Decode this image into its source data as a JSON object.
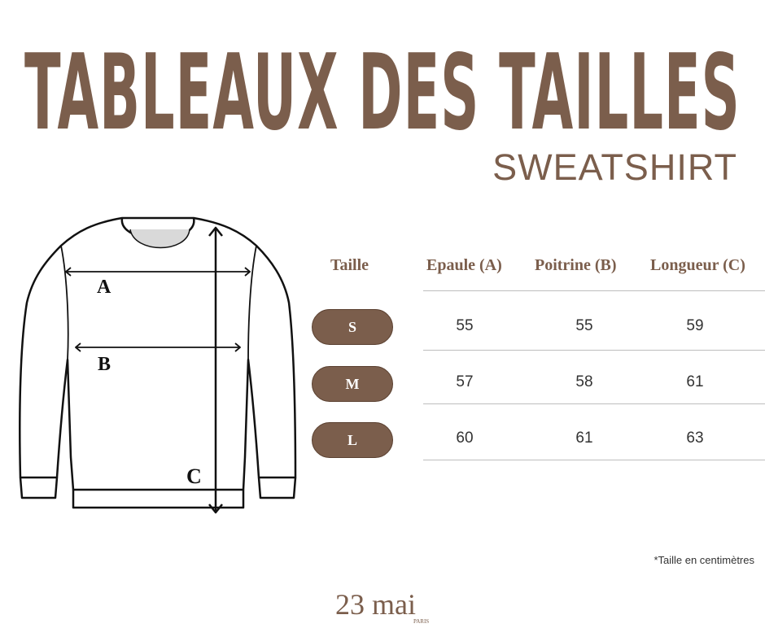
{
  "header": {
    "title": "TABLEAUX DES TAILLES",
    "subtitle": "SWEATSHIRT"
  },
  "diagram": {
    "labels": {
      "a": "A",
      "b": "B",
      "c": "C"
    }
  },
  "table": {
    "columns": [
      "Taille",
      "Epaule (A)",
      "Poitrine (B)",
      "Longueur (C)"
    ],
    "rows": [
      {
        "size": "S",
        "values": [
          "55",
          "55",
          "59"
        ]
      },
      {
        "size": "M",
        "values": [
          "57",
          "58",
          "61"
        ]
      },
      {
        "size": "L",
        "values": [
          "60",
          "61",
          "63"
        ]
      }
    ]
  },
  "footnote": "*Taille en centimètres",
  "brand": {
    "name": "23 mai",
    "sub": "PARIS"
  },
  "colors": {
    "brand": "#7b5e4c"
  }
}
